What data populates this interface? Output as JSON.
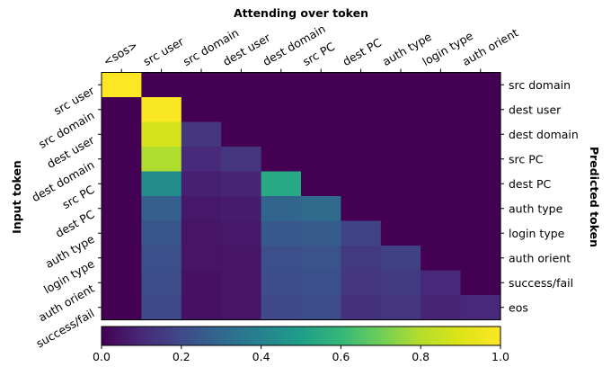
{
  "chart_data": {
    "type": "heatmap",
    "title": "Attending over token",
    "ylabel_left": "Input token",
    "ylabel_right": "Predicted token",
    "x_tokens": [
      "<sos>",
      "src user",
      "src domain",
      "dest user",
      "dest domain",
      "src PC",
      "dest PC",
      "auth type",
      "login type",
      "auth orient"
    ],
    "y_input_tokens": [
      "src user",
      "src domain",
      "dest user",
      "dest domain",
      "src PC",
      "dest PC",
      "auth type",
      "login type",
      "auth orient",
      "success/fail"
    ],
    "y_predicted_tokens": [
      "src domain",
      "dest user",
      "dest domain",
      "src PC",
      "dest PC",
      "auth type",
      "login type",
      "auth orient",
      "success/fail",
      "eos"
    ],
    "values": [
      [
        1.0,
        0.0,
        0.0,
        0.0,
        0.0,
        0.0,
        0.0,
        0.0,
        0.0,
        0.0
      ],
      [
        0.0,
        0.99,
        0.0,
        0.0,
        0.0,
        0.0,
        0.0,
        0.0,
        0.0,
        0.0
      ],
      [
        0.0,
        0.88,
        0.14,
        0.0,
        0.0,
        0.0,
        0.0,
        0.0,
        0.0,
        0.0
      ],
      [
        0.0,
        0.79,
        0.11,
        0.14,
        0.0,
        0.0,
        0.0,
        0.0,
        0.0,
        0.0
      ],
      [
        0.0,
        0.44,
        0.08,
        0.09,
        0.54,
        0.0,
        0.0,
        0.0,
        0.0,
        0.0
      ],
      [
        0.0,
        0.27,
        0.06,
        0.07,
        0.29,
        0.31,
        0.0,
        0.0,
        0.0,
        0.0
      ],
      [
        0.0,
        0.24,
        0.05,
        0.06,
        0.25,
        0.26,
        0.18,
        0.0,
        0.0,
        0.0
      ],
      [
        0.0,
        0.22,
        0.05,
        0.05,
        0.22,
        0.23,
        0.15,
        0.17,
        0.0,
        0.0
      ],
      [
        0.0,
        0.21,
        0.04,
        0.05,
        0.21,
        0.22,
        0.14,
        0.15,
        0.1,
        0.0
      ],
      [
        0.0,
        0.2,
        0.04,
        0.05,
        0.2,
        0.21,
        0.13,
        0.14,
        0.09,
        0.1
      ]
    ],
    "colorbar": {
      "min": 0.0,
      "max": 1.0,
      "ticks": [
        "0.0",
        "0.2",
        "0.4",
        "0.6",
        "0.8",
        "1.0"
      ],
      "colormap": "viridis"
    }
  }
}
